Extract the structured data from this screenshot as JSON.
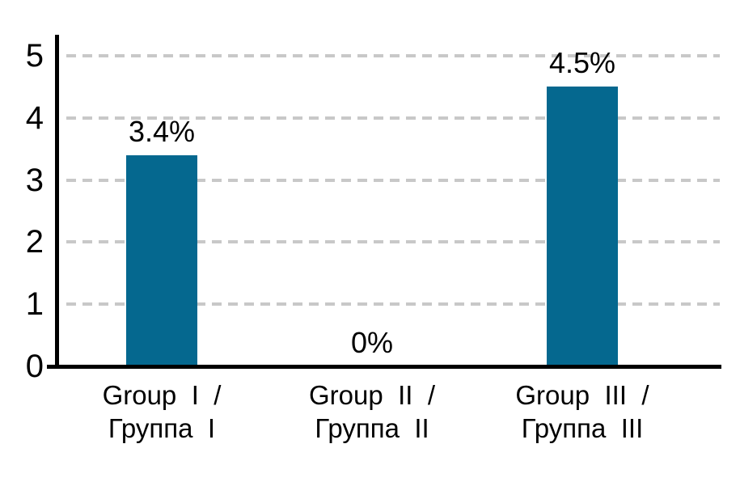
{
  "chart_data": {
    "type": "bar",
    "categories": [
      {
        "line1": "Group I /",
        "line2": "Группа I"
      },
      {
        "line1": "Group II /",
        "line2": "Группа II"
      },
      {
        "line1": "Group III /",
        "line2": "Группа III"
      }
    ],
    "values": [
      3.4,
      0,
      4.5
    ],
    "value_labels": [
      "3.4%",
      "0%",
      "4.5%"
    ],
    "yticks": [
      "0",
      "1",
      "2",
      "3",
      "4",
      "5"
    ],
    "ylim": [
      0,
      5
    ],
    "xlabel": "",
    "ylabel": "",
    "legend": "none",
    "grid": "horizontal-dashed",
    "bar_color": "#05688F",
    "gridline_color": "#C8C8C8",
    "axis_color": "#000000",
    "text_color": "#000000",
    "background_color": "#FFFFFF"
  }
}
